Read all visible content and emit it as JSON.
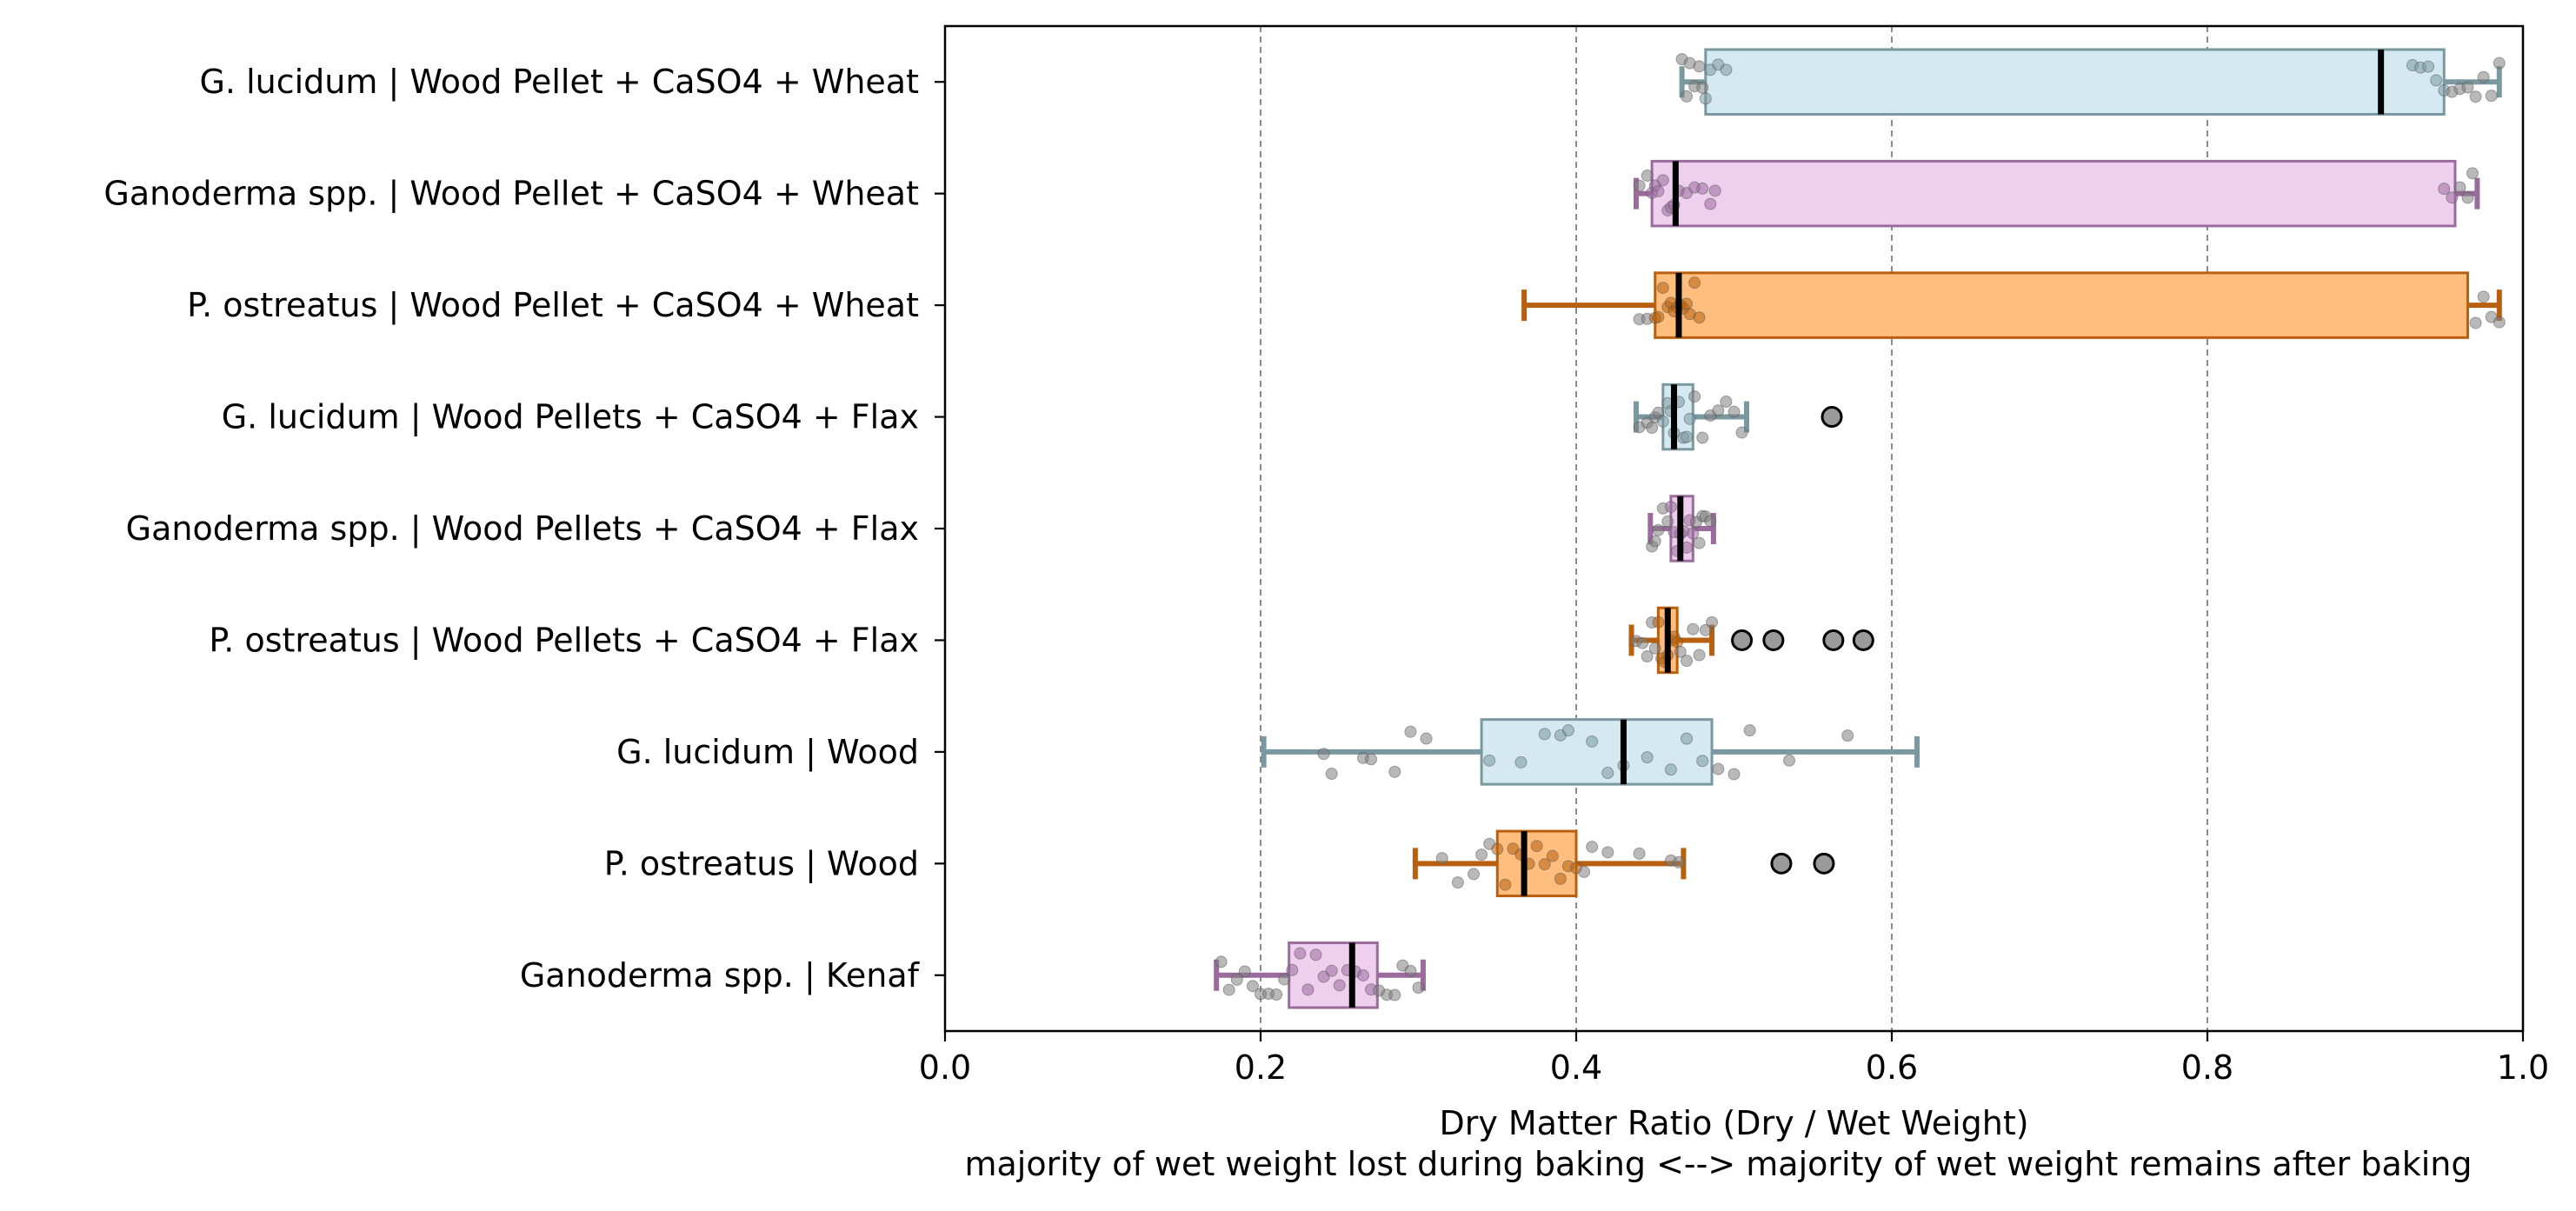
{
  "chart_data": {
    "type": "box",
    "orientation": "horizontal",
    "title": "",
    "xlabel": "Dry Matter Ratio (Dry / Wet Weight)",
    "xlabel_sub": "majority of wet weight lost during baking <--> majority of wet weight remains after baking",
    "ylabel": "",
    "xlim": [
      0.0,
      1.0
    ],
    "xticks": [
      "0.0",
      "0.2",
      "0.4",
      "0.6",
      "0.8",
      "1.0"
    ],
    "grid": "vertical dashed lines at 0.2, 0.4, 0.6, 0.8",
    "legend": "none",
    "palette": {
      "lightblue_fill": "#d4eaf0",
      "lightblue_edge": "#7a98a0",
      "pink_fill": "#eecfee",
      "pink_edge": "#9b6b9e",
      "orange_fill": "#ffbe7d",
      "orange_edge": "#b8600f",
      "median": "#000000",
      "point_gray": "#7f7f7f",
      "grid": "#808080"
    },
    "categories": [
      "G. lucidum | Wood Pellet + CaSO4 + Wheat",
      "Ganoderma spp. | Wood Pellet + CaSO4 + Wheat",
      "P. ostreatus | Wood Pellet + CaSO4 + Wheat",
      "G. lucidum | Wood Pellets + CaSO4 + Flax",
      "Ganoderma spp. | Wood Pellets + CaSO4 + Flax",
      "P. ostreatus | Wood Pellets + CaSO4 + Flax",
      "G. lucidum | Wood",
      "P. ostreatus | Wood",
      "Ganoderma spp. | Kenaf"
    ],
    "boxes": [
      {
        "category": "G. lucidum | Wood Pellet + CaSO4 + Wheat",
        "color": "lightblue",
        "whisker_low": 0.467,
        "q1": 0.482,
        "median": 0.91,
        "q3": 0.95,
        "whisker_high": 0.985,
        "outliers": [],
        "points": [
          0.467,
          0.47,
          0.472,
          0.475,
          0.478,
          0.48,
          0.482,
          0.485,
          0.49,
          0.495,
          0.93,
          0.935,
          0.94,
          0.945,
          0.95,
          0.955,
          0.96,
          0.965,
          0.97,
          0.975,
          0.98,
          0.985
        ]
      },
      {
        "category": "Ganoderma spp. | Wood Pellet + CaSO4 + Wheat",
        "color": "pink",
        "whisker_low": 0.438,
        "q1": 0.448,
        "median": 0.463,
        "q3": 0.957,
        "whisker_high": 0.971,
        "outliers": [],
        "points": [
          0.44,
          0.445,
          0.448,
          0.45,
          0.452,
          0.455,
          0.458,
          0.46,
          0.462,
          0.465,
          0.47,
          0.475,
          0.48,
          0.485,
          0.488,
          0.95,
          0.955,
          0.96,
          0.965,
          0.968
        ]
      },
      {
        "category": "P. ostreatus | Wood Pellet + CaSO4 + Wheat",
        "color": "orange",
        "whisker_low": 0.367,
        "q1": 0.45,
        "median": 0.465,
        "q3": 0.965,
        "whisker_high": 0.985,
        "outliers": [],
        "points": [
          0.44,
          0.445,
          0.45,
          0.452,
          0.455,
          0.458,
          0.46,
          0.462,
          0.464,
          0.466,
          0.468,
          0.47,
          0.472,
          0.475,
          0.478,
          0.97,
          0.975,
          0.98,
          0.985
        ]
      },
      {
        "category": "G. lucidum | Wood Pellets + CaSO4 + Flax",
        "color": "lightblue",
        "whisker_low": 0.438,
        "q1": 0.455,
        "median": 0.462,
        "q3": 0.474,
        "whisker_high": 0.508,
        "outliers": [
          0.562
        ],
        "points": [
          0.44,
          0.445,
          0.448,
          0.45,
          0.452,
          0.455,
          0.458,
          0.46,
          0.462,
          0.465,
          0.468,
          0.47,
          0.472,
          0.475,
          0.48,
          0.485,
          0.49,
          0.495,
          0.5,
          0.505
        ]
      },
      {
        "category": "Ganoderma spp. | Wood Pellets + CaSO4 + Flax",
        "color": "pink",
        "whisker_low": 0.447,
        "q1": 0.46,
        "median": 0.466,
        "q3": 0.474,
        "whisker_high": 0.487,
        "outliers": [],
        "points": [
          0.448,
          0.45,
          0.452,
          0.455,
          0.458,
          0.46,
          0.462,
          0.464,
          0.466,
          0.468,
          0.47,
          0.472,
          0.474,
          0.476,
          0.478,
          0.48,
          0.482,
          0.485
        ]
      },
      {
        "category": "P. ostreatus | Wood Pellets + CaSO4 + Flax",
        "color": "orange",
        "whisker_low": 0.435,
        "q1": 0.452,
        "median": 0.458,
        "q3": 0.464,
        "whisker_high": 0.486,
        "outliers": [
          0.505,
          0.525,
          0.563,
          0.582
        ],
        "points": [
          0.438,
          0.442,
          0.445,
          0.448,
          0.45,
          0.452,
          0.454,
          0.456,
          0.458,
          0.46,
          0.462,
          0.464,
          0.466,
          0.47,
          0.474,
          0.478,
          0.482,
          0.486
        ]
      },
      {
        "category": "G. lucidum | Wood",
        "color": "lightblue",
        "whisker_low": 0.202,
        "q1": 0.34,
        "median": 0.43,
        "q3": 0.486,
        "whisker_high": 0.616,
        "outliers": [],
        "points": [
          0.24,
          0.245,
          0.265,
          0.27,
          0.285,
          0.295,
          0.305,
          0.345,
          0.365,
          0.38,
          0.39,
          0.395,
          0.41,
          0.42,
          0.43,
          0.445,
          0.46,
          0.47,
          0.48,
          0.49,
          0.5,
          0.51,
          0.535,
          0.572
        ]
      },
      {
        "category": "P. ostreatus | Wood",
        "color": "orange",
        "whisker_low": 0.298,
        "q1": 0.35,
        "median": 0.367,
        "q3": 0.4,
        "whisker_high": 0.468,
        "outliers": [
          0.53,
          0.557
        ],
        "points": [
          0.315,
          0.325,
          0.335,
          0.34,
          0.345,
          0.35,
          0.355,
          0.36,
          0.365,
          0.37,
          0.375,
          0.38,
          0.385,
          0.39,
          0.395,
          0.4,
          0.405,
          0.41,
          0.42,
          0.44,
          0.46,
          0.465
        ]
      },
      {
        "category": "Ganoderma spp. | Kenaf",
        "color": "pink",
        "whisker_low": 0.172,
        "q1": 0.218,
        "median": 0.258,
        "q3": 0.274,
        "whisker_high": 0.303,
        "outliers": [],
        "points": [
          0.175,
          0.18,
          0.185,
          0.19,
          0.195,
          0.2,
          0.205,
          0.21,
          0.215,
          0.22,
          0.225,
          0.23,
          0.235,
          0.24,
          0.245,
          0.25,
          0.255,
          0.26,
          0.265,
          0.27,
          0.275,
          0.28,
          0.285,
          0.29,
          0.295,
          0.3
        ]
      }
    ]
  }
}
